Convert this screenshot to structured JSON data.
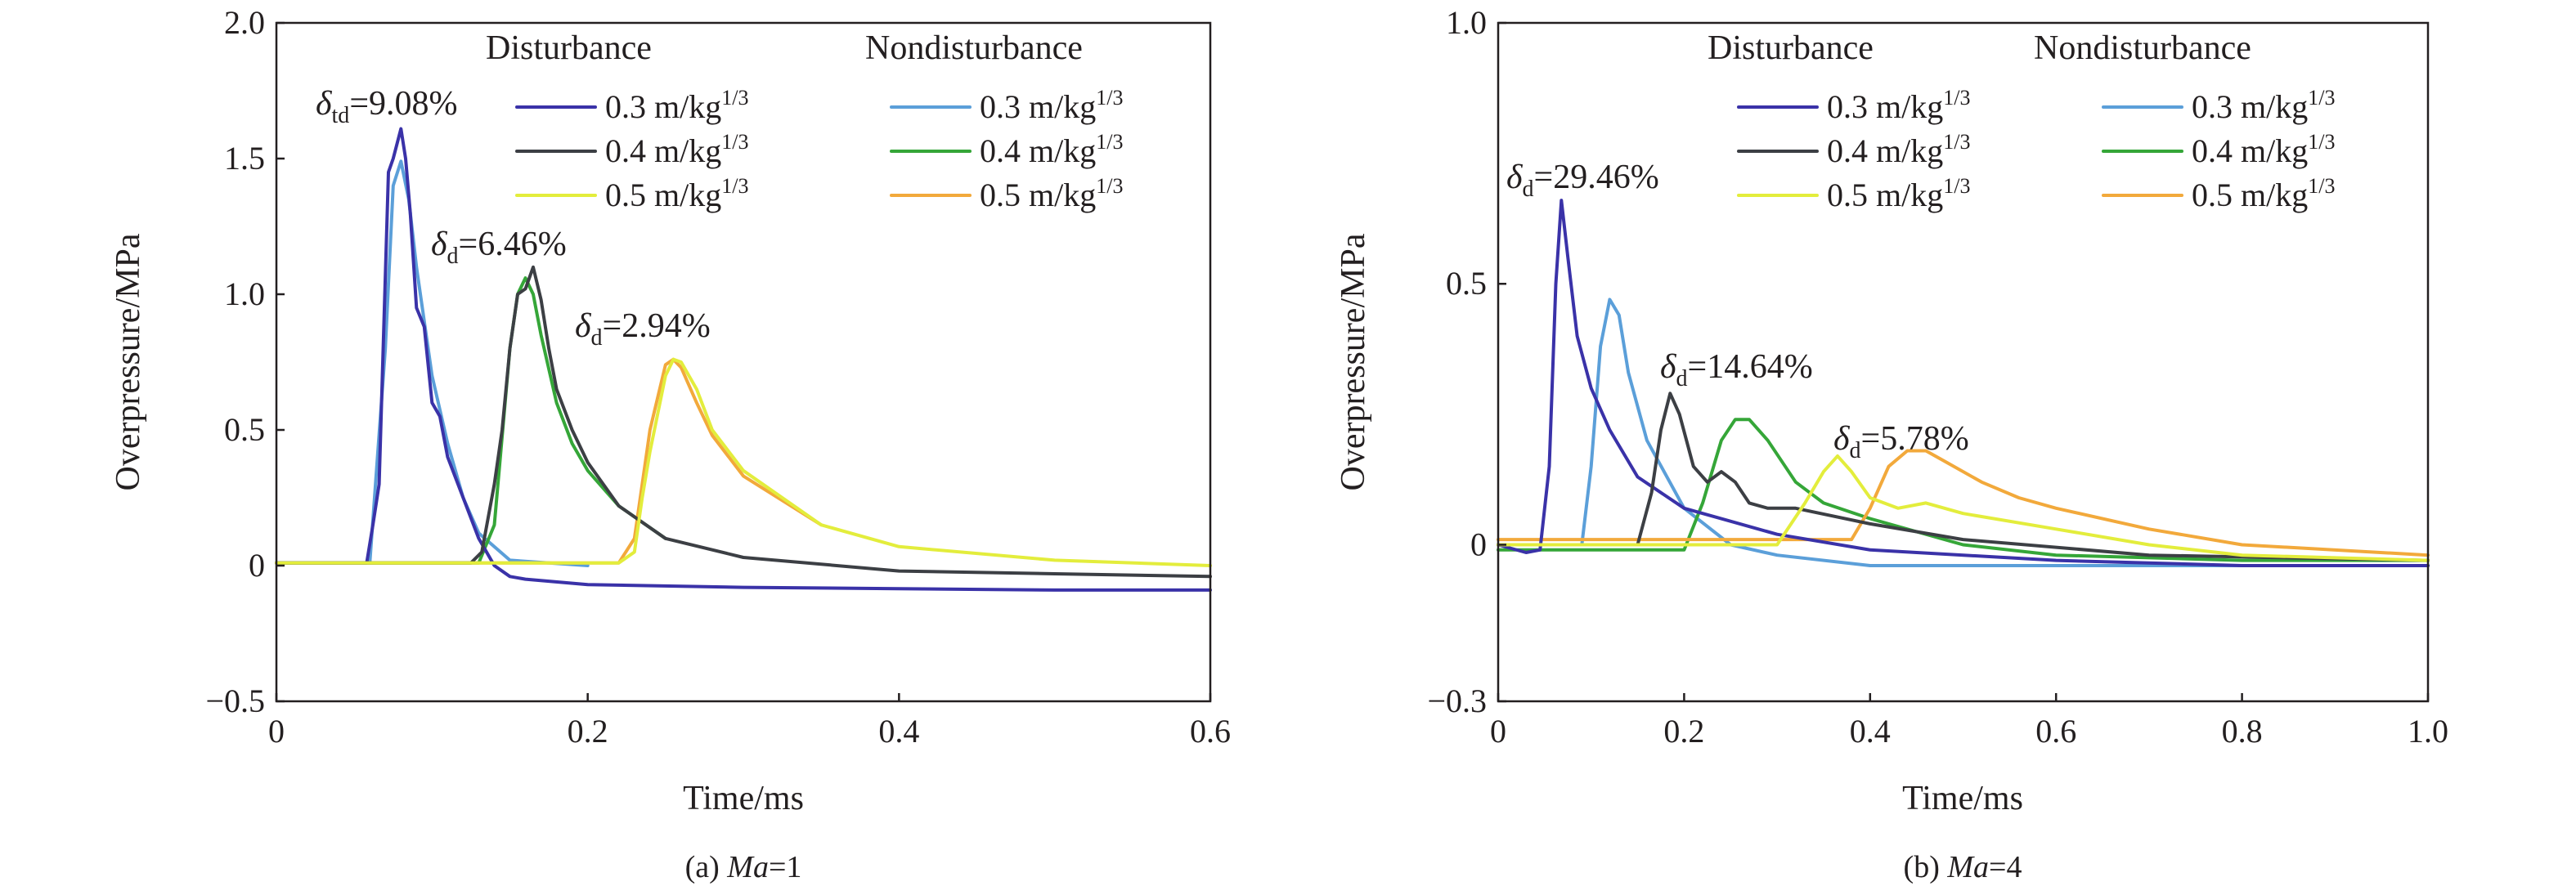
{
  "captions": [
    {
      "prefix": "(a) ",
      "italic": "Ma",
      "suffix": "=1"
    },
    {
      "prefix": "(b) ",
      "italic": "Ma",
      "suffix": "=4"
    }
  ],
  "legend_headers": [
    "Disturbance",
    "Nondisturbance"
  ],
  "legend_labels": [
    "0.3 m/kg",
    "0.4 m/kg",
    "0.5 m/kg"
  ],
  "legend_superscript": "1/3",
  "colors": {
    "dist_0.3": "#3a32a8",
    "dist_0.4": "#3c3f44",
    "dist_0.5": "#e3ed3c",
    "nondist_0.3": "#5b9fd9",
    "nondist_0.4": "#35a638",
    "nondist_0.5": "#f2a93b"
  },
  "chart_data": [
    {
      "type": "line",
      "xlabel": "Time/ms",
      "ylabel": "Overpressure/MPa",
      "xlim": [
        0,
        0.6
      ],
      "ylim": [
        -0.5,
        2.0
      ],
      "xticks": [
        "0",
        "0.2",
        "0.4",
        "0.6"
      ],
      "yticks": [
        "−0.5",
        "0",
        "0.5",
        "1.0",
        "1.5",
        "2.0"
      ],
      "annotations": [
        {
          "sym": "δ",
          "sub": "td",
          "text": "=9.08%"
        },
        {
          "sym": "δ",
          "sub": "d",
          "text": "=6.46%"
        },
        {
          "sym": "δ",
          "sub": "d",
          "text": "=2.94%"
        }
      ],
      "series": [
        {
          "group": "Disturbance",
          "name": "0.3 m/kg1/3",
          "color_key": "dist_0.3",
          "x": [
            0,
            0.058,
            0.062,
            0.066,
            0.072,
            0.075,
            0.08,
            0.083,
            0.086,
            0.09,
            0.095,
            0.1,
            0.105,
            0.11,
            0.12,
            0.13,
            0.14,
            0.15,
            0.16,
            0.2,
            0.3,
            0.4,
            0.5,
            0.6
          ],
          "y": [
            0.01,
            0.01,
            0.15,
            0.3,
            1.45,
            1.5,
            1.61,
            1.5,
            1.3,
            0.95,
            0.88,
            0.6,
            0.55,
            0.4,
            0.25,
            0.1,
            0.0,
            -0.04,
            -0.05,
            -0.07,
            -0.08,
            -0.085,
            -0.09,
            -0.09
          ]
        },
        {
          "group": "Disturbance",
          "name": "0.4 m/kg1/3",
          "color_key": "dist_0.4",
          "x": [
            0,
            0.125,
            0.132,
            0.14,
            0.145,
            0.15,
            0.155,
            0.16,
            0.165,
            0.17,
            0.175,
            0.18,
            0.19,
            0.2,
            0.22,
            0.25,
            0.3,
            0.4,
            0.5,
            0.6
          ],
          "y": [
            0.01,
            0.01,
            0.05,
            0.3,
            0.5,
            0.8,
            1.0,
            1.02,
            1.1,
            0.98,
            0.8,
            0.65,
            0.5,
            0.38,
            0.22,
            0.1,
            0.03,
            -0.02,
            -0.03,
            -0.04
          ]
        },
        {
          "group": "Disturbance",
          "name": "0.5 m/kg1/3",
          "color_key": "dist_0.5",
          "x": [
            0,
            0.22,
            0.23,
            0.235,
            0.24,
            0.25,
            0.255,
            0.26,
            0.27,
            0.28,
            0.3,
            0.35,
            0.4,
            0.5,
            0.6
          ],
          "y": [
            0.01,
            0.01,
            0.05,
            0.25,
            0.42,
            0.7,
            0.76,
            0.75,
            0.65,
            0.5,
            0.35,
            0.15,
            0.07,
            0.02,
            0.0
          ]
        },
        {
          "group": "Nondisturbance",
          "name": "0.3 m/kg1/3",
          "color_key": "nondist_0.3",
          "x": [
            0,
            0.06,
            0.07,
            0.075,
            0.08,
            0.085,
            0.09,
            0.1,
            0.11,
            0.12,
            0.13,
            0.15,
            0.2
          ],
          "y": [
            0.01,
            0.01,
            0.8,
            1.4,
            1.49,
            1.35,
            1.1,
            0.7,
            0.45,
            0.25,
            0.12,
            0.02,
            0.0
          ]
        },
        {
          "group": "Nondisturbance",
          "name": "0.4 m/kg1/3",
          "color_key": "nondist_0.4",
          "x": [
            0,
            0.13,
            0.14,
            0.15,
            0.155,
            0.16,
            0.165,
            0.17,
            0.18,
            0.19,
            0.2,
            0.22,
            0.25
          ],
          "y": [
            0.01,
            0.01,
            0.15,
            0.8,
            1.0,
            1.06,
            1.0,
            0.85,
            0.6,
            0.45,
            0.35,
            0.22,
            0.1
          ]
        },
        {
          "group": "Nondisturbance",
          "name": "0.5 m/kg1/3",
          "color_key": "nondist_0.5",
          "x": [
            0,
            0.22,
            0.23,
            0.24,
            0.25,
            0.255,
            0.26,
            0.27,
            0.28,
            0.3,
            0.35
          ],
          "y": [
            0.01,
            0.01,
            0.1,
            0.5,
            0.74,
            0.76,
            0.73,
            0.6,
            0.48,
            0.33,
            0.15
          ]
        }
      ]
    },
    {
      "type": "line",
      "xlabel": "Time/ms",
      "ylabel": "Overpressure/MPa",
      "xlim": [
        0,
        1.0
      ],
      "ylim": [
        -0.3,
        1.0
      ],
      "xticks": [
        "0",
        "0.2",
        "0.4",
        "0.6",
        "0.8",
        "1.0"
      ],
      "yticks": [
        "−0.3",
        "0",
        "0.5",
        "1.0"
      ],
      "annotations": [
        {
          "sym": "δ",
          "sub": "d",
          "text": "=29.46%"
        },
        {
          "sym": "δ",
          "sub": "d",
          "text": "=14.64%"
        },
        {
          "sym": "δ",
          "sub": "d",
          "text": "=5.78%"
        }
      ],
      "series": [
        {
          "group": "Disturbance",
          "name": "0.3 m/kg1/3",
          "color_key": "dist_0.3",
          "x": [
            0,
            0.03,
            0.045,
            0.055,
            0.062,
            0.068,
            0.075,
            0.085,
            0.1,
            0.12,
            0.15,
            0.2,
            0.3,
            0.4,
            0.6,
            0.8,
            1.0
          ],
          "y": [
            0.0,
            -0.015,
            -0.01,
            0.15,
            0.5,
            0.66,
            0.55,
            0.4,
            0.3,
            0.22,
            0.13,
            0.07,
            0.02,
            -0.01,
            -0.03,
            -0.04,
            -0.04
          ]
        },
        {
          "group": "Disturbance",
          "name": "0.4 m/kg1/3",
          "color_key": "dist_0.4",
          "x": [
            0,
            0.15,
            0.165,
            0.175,
            0.185,
            0.195,
            0.21,
            0.225,
            0.24,
            0.255,
            0.27,
            0.29,
            0.32,
            0.4,
            0.5,
            0.7,
            1.0
          ],
          "y": [
            0.0,
            0.0,
            0.1,
            0.22,
            0.29,
            0.25,
            0.15,
            0.12,
            0.14,
            0.12,
            0.08,
            0.07,
            0.07,
            0.04,
            0.01,
            -0.02,
            -0.03
          ]
        },
        {
          "group": "Disturbance",
          "name": "0.5 m/kg1/3",
          "color_key": "dist_0.5",
          "x": [
            0,
            0.3,
            0.33,
            0.35,
            0.365,
            0.38,
            0.4,
            0.43,
            0.46,
            0.5,
            0.6,
            0.7,
            0.8,
            1.0
          ],
          "y": [
            0.0,
            0.0,
            0.08,
            0.14,
            0.17,
            0.14,
            0.09,
            0.07,
            0.08,
            0.06,
            0.03,
            0.0,
            -0.02,
            -0.03
          ]
        },
        {
          "group": "Nondisturbance",
          "name": "0.3 m/kg1/3",
          "color_key": "nondist_0.3",
          "x": [
            0,
            0.09,
            0.1,
            0.11,
            0.12,
            0.13,
            0.14,
            0.16,
            0.2,
            0.25,
            0.3,
            0.4,
            0.6,
            0.8,
            1.0
          ],
          "y": [
            0.0,
            0.0,
            0.15,
            0.38,
            0.47,
            0.44,
            0.33,
            0.2,
            0.07,
            0.0,
            -0.02,
            -0.04,
            -0.04,
            -0.04,
            -0.04
          ]
        },
        {
          "group": "Nondisturbance",
          "name": "0.4 m/kg1/3",
          "color_key": "nondist_0.4",
          "x": [
            0,
            0.2,
            0.22,
            0.24,
            0.255,
            0.27,
            0.29,
            0.32,
            0.35,
            0.4,
            0.5,
            0.6,
            0.8,
            1.0
          ],
          "y": [
            -0.01,
            -0.01,
            0.08,
            0.2,
            0.24,
            0.24,
            0.2,
            0.12,
            0.08,
            0.05,
            0.0,
            -0.02,
            -0.03,
            -0.03
          ]
        },
        {
          "group": "Nondisturbance",
          "name": "0.5 m/kg1/3",
          "color_key": "nondist_0.5",
          "x": [
            0,
            0.38,
            0.4,
            0.42,
            0.44,
            0.46,
            0.48,
            0.52,
            0.56,
            0.6,
            0.7,
            0.8,
            1.0
          ],
          "y": [
            0.01,
            0.01,
            0.07,
            0.15,
            0.18,
            0.18,
            0.16,
            0.12,
            0.09,
            0.07,
            0.03,
            0.0,
            -0.02
          ]
        }
      ]
    }
  ]
}
